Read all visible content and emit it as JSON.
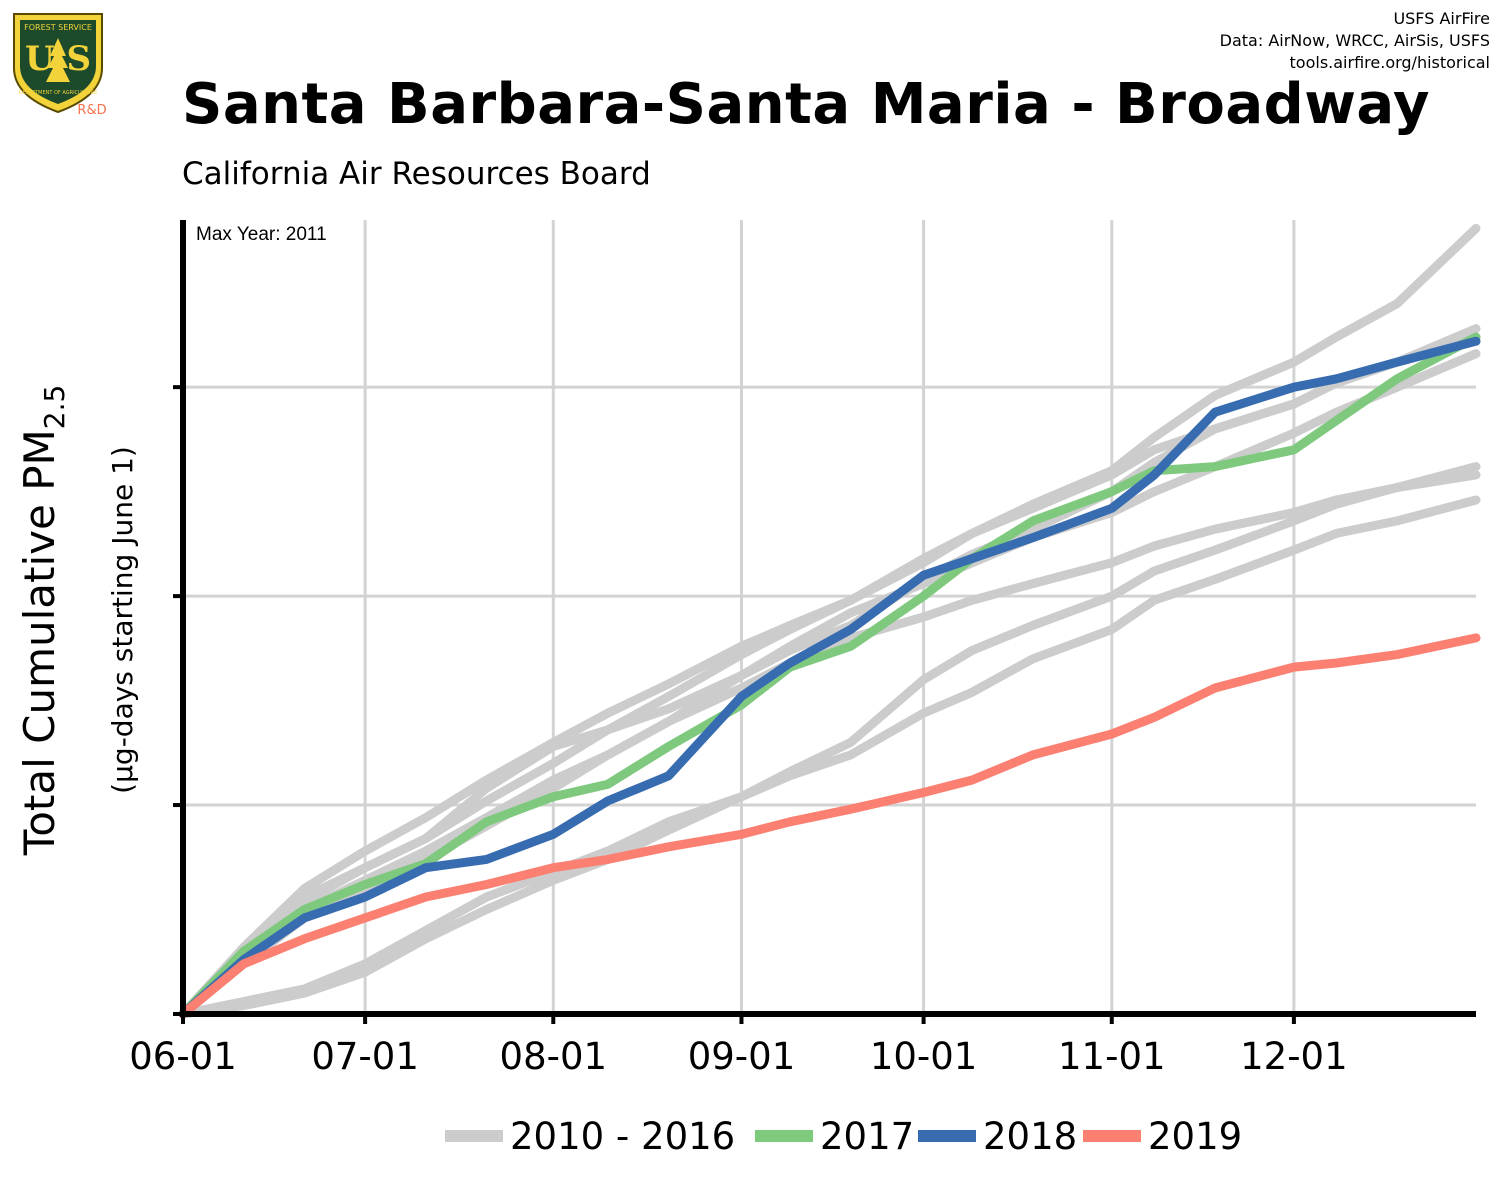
{
  "logo": {
    "top_text": "FOREST SERVICE",
    "letters": "U S",
    "bottom_text": "DEPARTMENT OF AGRICULTURE",
    "rd": "R&D"
  },
  "credits": {
    "line1": "USFS AirFire",
    "line2": "Data: AirNow, WRCC, AirSis, USFS",
    "line3": "tools.airfire.org/historical"
  },
  "colors": {
    "historical": "#cccccc",
    "y2017": "#7fc97f",
    "y2018": "#386cb0",
    "y2019": "#fb8072",
    "grid": "#d3d3d3",
    "axis": "#000000"
  },
  "chart_data": {
    "type": "line",
    "title": "Santa Barbara-Santa Maria - Broadway",
    "subtitle": "California Air Resources Board",
    "annotation": "Max Year: 2011",
    "ylabel_main": "Total Cumulative PM",
    "ylabel_sub": "2.5",
    "ylabel_units": "(µg-days starting June 1)",
    "x_ticks": [
      "06-01",
      "07-01",
      "08-01",
      "09-01",
      "10-01",
      "11-01",
      "12-01"
    ],
    "x_tick_days": [
      0,
      30,
      61,
      92,
      122,
      153,
      183
    ],
    "xlim": [
      0,
      213
    ],
    "ylim": [
      0,
      1900
    ],
    "y_ticks": [
      500,
      1000,
      1500
    ],
    "grid": true,
    "legend_position": "bottom",
    "legend": [
      {
        "label": "2010 - 2016",
        "color_key": "historical"
      },
      {
        "label": "2017",
        "color_key": "y2017"
      },
      {
        "label": "2018",
        "color_key": "y2018"
      },
      {
        "label": "2019",
        "color_key": "y2019"
      }
    ],
    "x": [
      0,
      10,
      20,
      30,
      40,
      50,
      61,
      70,
      80,
      92,
      100,
      110,
      122,
      130,
      140,
      153,
      160,
      170,
      183,
      190,
      200,
      213
    ],
    "historical_series": [
      {
        "values": [
          0,
          150,
          280,
          350,
          420,
          540,
          640,
          680,
          730,
          810,
          880,
          960,
          1030,
          1080,
          1140,
          1200,
          1250,
          1310,
          1390,
          1440,
          1500,
          1580
        ]
      },
      {
        "values": [
          0,
          160,
          300,
          390,
          470,
          560,
          650,
          720,
          790,
          880,
          930,
          990,
          1090,
          1150,
          1220,
          1300,
          1380,
          1480,
          1560,
          1620,
          1700,
          1880
        ]
      },
      {
        "values": [
          0,
          140,
          270,
          350,
          420,
          510,
          600,
          680,
          760,
          860,
          920,
          990,
          1080,
          1150,
          1210,
          1290,
          1350,
          1400,
          1460,
          1510,
          1560,
          1640
        ]
      },
      {
        "values": [
          0,
          120,
          230,
          300,
          370,
          450,
          540,
          620,
          700,
          780,
          840,
          900,
          950,
          990,
          1030,
          1080,
          1120,
          1160,
          1200,
          1230,
          1260,
          1290
        ]
      },
      {
        "values": [
          0,
          30,
          60,
          120,
          200,
          280,
          340,
          390,
          460,
          520,
          570,
          620,
          720,
          770,
          850,
          920,
          990,
          1040,
          1110,
          1150,
          1180,
          1230
        ]
      },
      {
        "values": [
          0,
          20,
          50,
          100,
          180,
          250,
          320,
          370,
          440,
          520,
          580,
          650,
          800,
          870,
          930,
          1000,
          1060,
          1110,
          1180,
          1220,
          1260,
          1310
        ]
      },
      {
        "values": [
          0,
          140,
          250,
          320,
          390,
          470,
          560,
          620,
          700,
          810,
          870,
          930,
          1040,
          1100,
          1160,
          1250,
          1320,
          1400,
          1460,
          1510,
          1560,
          1620
        ]
      }
    ],
    "series": [
      {
        "name": "2017",
        "color_key": "y2017",
        "values": [
          0,
          150,
          250,
          310,
          360,
          460,
          520,
          550,
          640,
          740,
          830,
          880,
          1000,
          1090,
          1180,
          1250,
          1300,
          1310,
          1350,
          1420,
          1520,
          1620
        ]
      },
      {
        "name": "2018",
        "color_key": "y2018",
        "values": [
          0,
          130,
          230,
          280,
          350,
          370,
          430,
          510,
          570,
          760,
          840,
          920,
          1050,
          1090,
          1140,
          1210,
          1290,
          1440,
          1500,
          1520,
          1560,
          1610
        ]
      },
      {
        "name": "2019",
        "color_key": "y2019",
        "values": [
          0,
          120,
          180,
          230,
          280,
          310,
          350,
          370,
          400,
          430,
          460,
          490,
          530,
          560,
          620,
          670,
          710,
          780,
          830,
          840,
          860,
          900
        ]
      }
    ]
  }
}
